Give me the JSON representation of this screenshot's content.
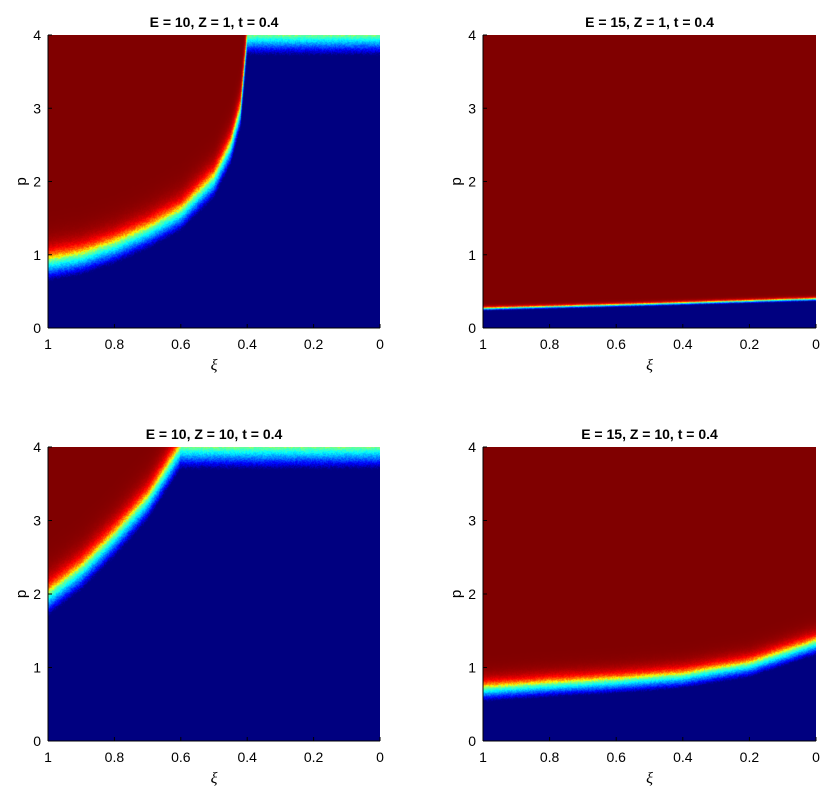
{
  "chart_data": [
    {
      "type": "heatmap",
      "title": "E = 10, Z = 1, t = 0.4",
      "xlabel": "ξ",
      "ylabel": "p",
      "xlim": [
        1,
        0
      ],
      "ylim": [
        0,
        4
      ],
      "x_ticks": [
        "1",
        "0.8",
        "0.6",
        "0.4",
        "0.2",
        "0"
      ],
      "y_ticks": [
        "0",
        "1",
        "2",
        "3",
        "4"
      ],
      "colormap": "jet",
      "boundary": [
        {
          "xi": 1.0,
          "p": 0.92
        },
        {
          "xi": 0.9,
          "p": 1.0
        },
        {
          "xi": 0.8,
          "p": 1.15
        },
        {
          "xi": 0.7,
          "p": 1.35
        },
        {
          "xi": 0.6,
          "p": 1.6
        },
        {
          "xi": 0.5,
          "p": 2.05
        },
        {
          "xi": 0.45,
          "p": 2.5
        },
        {
          "xi": 0.42,
          "p": 3.0
        },
        {
          "xi": 0.4,
          "p": 4.0
        }
      ],
      "transition_width": 0.12
    },
    {
      "type": "heatmap",
      "title": "E = 15, Z = 1, t = 0.4",
      "xlabel": "ξ",
      "ylabel": "p",
      "xlim": [
        1,
        0
      ],
      "ylim": [
        0,
        4
      ],
      "x_ticks": [
        "1",
        "0.8",
        "0.6",
        "0.4",
        "0.2",
        "0"
      ],
      "y_ticks": [
        "0",
        "1",
        "2",
        "3",
        "4"
      ],
      "colormap": "jet",
      "boundary": [
        {
          "xi": 1.0,
          "p": 0.27
        },
        {
          "xi": 0.5,
          "p": 0.33
        },
        {
          "xi": 0.0,
          "p": 0.4
        }
      ],
      "transition_width": 0.015
    },
    {
      "type": "heatmap",
      "title": "E = 10, Z = 10, t = 0.4",
      "xlabel": "ξ",
      "ylabel": "p",
      "xlim": [
        1,
        0
      ],
      "ylim": [
        0,
        4
      ],
      "x_ticks": [
        "1",
        "0.8",
        "0.6",
        "0.4",
        "0.2",
        "0"
      ],
      "y_ticks": [
        "0",
        "1",
        "2",
        "3",
        "4"
      ],
      "colormap": "jet",
      "boundary": [
        {
          "xi": 1.0,
          "p": 2.0
        },
        {
          "xi": 0.9,
          "p": 2.35
        },
        {
          "xi": 0.8,
          "p": 2.8
        },
        {
          "xi": 0.7,
          "p": 3.3
        },
        {
          "xi": 0.6,
          "p": 4.0
        }
      ],
      "transition_width": 0.13
    },
    {
      "type": "heatmap",
      "title": "E = 15, Z = 10, t = 0.4",
      "xlabel": "ξ",
      "ylabel": "p",
      "xlim": [
        1,
        0
      ],
      "ylim": [
        0,
        4
      ],
      "x_ticks": [
        "1",
        "0.8",
        "0.6",
        "0.4",
        "0.2",
        "0"
      ],
      "y_ticks": [
        "0",
        "1",
        "2",
        "3",
        "4"
      ],
      "colormap": "jet",
      "boundary": [
        {
          "xi": 1.0,
          "p": 0.72
        },
        {
          "xi": 0.8,
          "p": 0.78
        },
        {
          "xi": 0.6,
          "p": 0.83
        },
        {
          "xi": 0.4,
          "p": 0.9
        },
        {
          "xi": 0.2,
          "p": 1.05
        },
        {
          "xi": 0.1,
          "p": 1.2
        },
        {
          "xi": 0.0,
          "p": 1.35
        }
      ],
      "transition_width": 0.08
    }
  ]
}
